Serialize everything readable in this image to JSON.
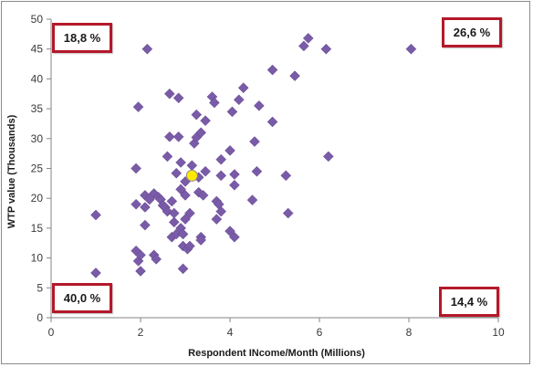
{
  "chart_data": {
    "type": "scatter",
    "xlabel": "Respondent INcome/Month (Millions)",
    "ylabel": "WTP value (Thousands)",
    "xlim": [
      0,
      10
    ],
    "ylim": [
      0,
      50
    ],
    "x_ticks": [
      0,
      2,
      4,
      6,
      8,
      10
    ],
    "y_ticks": [
      0,
      5,
      10,
      15,
      20,
      25,
      30,
      35,
      40,
      45,
      50
    ],
    "grid": false,
    "legend": "none",
    "series": [
      {
        "marker": "diamond",
        "color": "#7a5ba8",
        "points": [
          [
            1.0,
            7.5
          ],
          [
            1.0,
            17.2
          ],
          [
            1.9,
            11.2
          ],
          [
            1.9,
            19.0
          ],
          [
            1.9,
            25.0
          ],
          [
            1.95,
            35.3
          ],
          [
            1.95,
            9.5
          ],
          [
            2.0,
            7.8
          ],
          [
            2.0,
            10.5
          ],
          [
            2.1,
            15.5
          ],
          [
            2.1,
            18.5
          ],
          [
            2.1,
            20.5
          ],
          [
            2.15,
            45.0
          ],
          [
            2.2,
            19.8
          ],
          [
            2.3,
            20.8
          ],
          [
            2.3,
            10.5
          ],
          [
            2.35,
            9.8
          ],
          [
            2.4,
            20.2
          ],
          [
            2.45,
            19.8
          ],
          [
            2.5,
            18.8
          ],
          [
            2.55,
            18.5
          ],
          [
            2.6,
            17.8
          ],
          [
            2.6,
            27.0
          ],
          [
            2.65,
            30.3
          ],
          [
            2.65,
            37.5
          ],
          [
            2.7,
            13.5
          ],
          [
            2.7,
            19.5
          ],
          [
            2.75,
            16.0
          ],
          [
            2.75,
            17.5
          ],
          [
            2.8,
            14.0
          ],
          [
            2.8,
            24.2
          ],
          [
            2.85,
            30.3
          ],
          [
            2.85,
            36.8
          ],
          [
            2.9,
            21.5
          ],
          [
            2.9,
            26.0
          ],
          [
            2.9,
            15.0
          ],
          [
            2.95,
            14.0
          ],
          [
            2.95,
            12.0
          ],
          [
            2.95,
            8.2
          ],
          [
            3.0,
            22.8
          ],
          [
            3.0,
            20.5
          ],
          [
            3.0,
            16.5
          ],
          [
            3.05,
            11.5
          ],
          [
            3.1,
            17.5
          ],
          [
            3.1,
            12.0
          ],
          [
            3.15,
            25.5
          ],
          [
            3.2,
            29.2
          ],
          [
            3.25,
            34.0
          ],
          [
            3.25,
            30.2
          ],
          [
            3.3,
            21.0
          ],
          [
            3.3,
            23.5
          ],
          [
            3.35,
            31.0
          ],
          [
            3.35,
            13.5
          ],
          [
            3.35,
            13.0
          ],
          [
            3.4,
            20.5
          ],
          [
            3.45,
            24.5
          ],
          [
            3.45,
            33.0
          ],
          [
            3.6,
            37.0
          ],
          [
            3.65,
            36.0
          ],
          [
            3.7,
            16.5
          ],
          [
            3.7,
            19.5
          ],
          [
            3.75,
            19.0
          ],
          [
            3.8,
            17.8
          ],
          [
            3.8,
            23.8
          ],
          [
            3.8,
            26.5
          ],
          [
            4.0,
            14.5
          ],
          [
            4.0,
            28.0
          ],
          [
            4.05,
            34.5
          ],
          [
            4.1,
            13.5
          ],
          [
            4.1,
            22.2
          ],
          [
            4.1,
            24.0
          ],
          [
            4.2,
            36.5
          ],
          [
            4.3,
            38.5
          ],
          [
            4.5,
            19.7
          ],
          [
            4.55,
            29.5
          ],
          [
            4.6,
            24.5
          ],
          [
            4.65,
            35.5
          ],
          [
            4.95,
            32.8
          ],
          [
            4.95,
            41.5
          ],
          [
            5.25,
            23.8
          ],
          [
            5.3,
            17.5
          ],
          [
            5.45,
            40.5
          ],
          [
            5.65,
            45.5
          ],
          [
            5.75,
            46.8
          ],
          [
            6.15,
            45.0
          ],
          [
            6.2,
            27.0
          ],
          [
            8.05,
            45.0
          ]
        ]
      },
      {
        "marker": "circle",
        "color": "#ffe800",
        "points": [
          [
            3.15,
            23.8
          ]
        ]
      }
    ],
    "quadrant_labels": [
      "18,8 %",
      "26,6 %",
      "40,0 %",
      "14,4 %"
    ]
  }
}
